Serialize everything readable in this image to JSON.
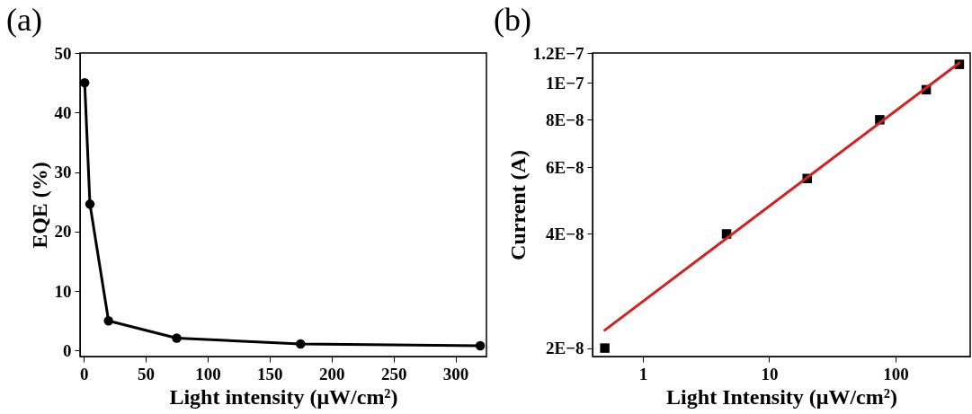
{
  "chart_data": [
    {
      "type": "line",
      "title": "(a)",
      "xlabel": "Light intensity (μW/cm²)",
      "ylabel": "EQE (%)",
      "marker": "circle",
      "x": [
        0.75,
        5,
        20,
        75,
        175,
        320
      ],
      "series": [
        {
          "color": "#000000",
          "values": [
            45,
            24.6,
            5.0,
            2.1,
            1.1,
            0.8
          ]
        }
      ],
      "xlim": [
        -3,
        325
      ],
      "xticks": [
        0,
        50,
        100,
        150,
        200,
        250,
        300
      ],
      "ylim": [
        -1,
        50
      ],
      "yticks": [
        0,
        10,
        20,
        30,
        40,
        50
      ]
    },
    {
      "type": "scatter",
      "title": "(b)",
      "xlabel": "Light Intensity (μW/cm²)",
      "ylabel": "Current (A)",
      "log": "xy",
      "series": [
        {
          "type": "scatter",
          "marker": "square",
          "color": "#000000",
          "x": [
            0.5,
            4.6,
            20,
            75,
            175,
            320
          ],
          "values": [
            2e-08,
            4e-08,
            5.6e-08,
            8e-08,
            9.6e-08,
            1.12e-07
          ]
        },
        {
          "type": "line",
          "color": "#d62020",
          "x": [
            0.5,
            320
          ],
          "values": [
            2.23e-08,
            1.13e-07
          ]
        }
      ],
      "xlim": [
        0.4,
        390
      ],
      "xticks": [
        1,
        10,
        100
      ],
      "ylim": [
        1.9e-08,
        1.2e-07
      ],
      "yticks": [
        {
          "value": 2e-08,
          "label": "2E−8"
        },
        {
          "value": 4e-08,
          "label": "4E−8"
        },
        {
          "value": 6e-08,
          "label": "6E−8"
        },
        {
          "value": 8e-08,
          "label": "8E−8"
        },
        {
          "value": 1e-07,
          "label": "1E−7"
        },
        {
          "value": 1.2e-07,
          "label": "1.2E−7"
        }
      ]
    }
  ]
}
